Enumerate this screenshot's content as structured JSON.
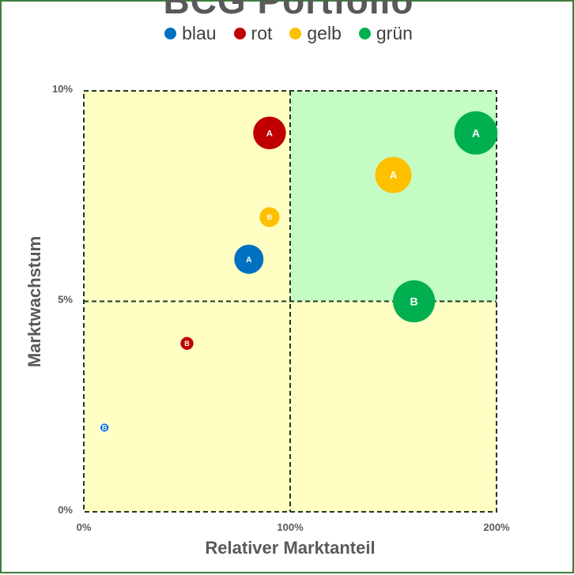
{
  "chart_data": {
    "type": "scatter",
    "variant": "bubble",
    "title": "BCG Portfolio",
    "xlabel": "Relativer Marktanteil",
    "ylabel": "Marktwachstum",
    "xlim": [
      0,
      200
    ],
    "ylim": [
      0,
      10
    ],
    "x_ticks": [
      {
        "value": 0,
        "label": "0%"
      },
      {
        "value": 100,
        "label": "100%"
      },
      {
        "value": 200,
        "label": "200%"
      }
    ],
    "y_ticks": [
      {
        "value": 0,
        "label": "0%"
      },
      {
        "value": 5,
        "label": "5%"
      },
      {
        "value": 10,
        "label": "10%"
      }
    ],
    "quadrant_split": {
      "x": 100,
      "y": 5
    },
    "quadrant_colors": {
      "default": "#ffffc4",
      "top_right": "#c4fcc4"
    },
    "grid_line_color": "#1f3a1f",
    "legend_position": "top",
    "series": [
      {
        "name": "blau",
        "color": "#0070c0",
        "points": [
          {
            "label": "A",
            "x": 80,
            "y": 6,
            "size": 25
          },
          {
            "label": "B",
            "x": 10,
            "y": 2,
            "size": 8
          }
        ]
      },
      {
        "name": "rot",
        "color": "#c00000",
        "points": [
          {
            "label": "A",
            "x": 90,
            "y": 9,
            "size": 28
          },
          {
            "label": "B",
            "x": 50,
            "y": 4,
            "size": 11
          }
        ]
      },
      {
        "name": "gelb",
        "color": "#ffc000",
        "points": [
          {
            "label": "A",
            "x": 150,
            "y": 8,
            "size": 31
          },
          {
            "label": "B",
            "x": 90,
            "y": 7,
            "size": 17
          }
        ]
      },
      {
        "name": "grün",
        "color": "#00b050",
        "points": [
          {
            "label": "A",
            "x": 190,
            "y": 9,
            "size": 37
          },
          {
            "label": "B",
            "x": 160,
            "y": 5,
            "size": 36
          }
        ]
      }
    ]
  }
}
